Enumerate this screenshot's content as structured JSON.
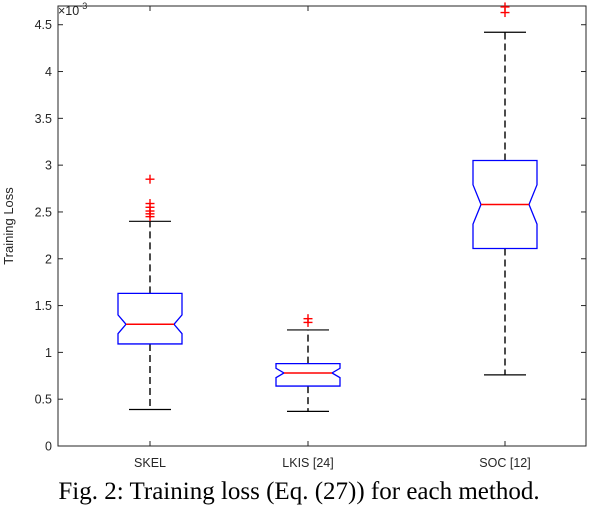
{
  "chart_data": {
    "type": "boxplot",
    "title": "",
    "xlabel": "",
    "ylabel": "Training Loss",
    "ylim": [
      0,
      0.0047
    ],
    "y_exponent_label": "×10",
    "y_exponent_power": "-3",
    "y_ticks": [
      0,
      0.5,
      1,
      1.5,
      2,
      2.5,
      3,
      3.5,
      4,
      4.5
    ],
    "y_tick_labels": [
      "0",
      "0.5",
      "1",
      "1.5",
      "2",
      "2.5",
      "3",
      "3.5",
      "4",
      "4.5"
    ],
    "categories": [
      "SKEL",
      "LKIS [24]",
      "SOC [12]"
    ],
    "boxes": [
      {
        "category": "SKEL",
        "whisker_low": 0.39,
        "q1": 1.09,
        "median": 1.3,
        "q3": 1.63,
        "whisker_high": 2.4,
        "notch_low": 1.2,
        "notch_high": 1.4,
        "outliers": [
          2.45,
          2.48,
          2.51,
          2.55,
          2.59,
          2.85
        ]
      },
      {
        "category": "LKIS [24]",
        "whisker_low": 0.37,
        "q1": 0.64,
        "median": 0.78,
        "q3": 0.88,
        "whisker_high": 1.24,
        "notch_low": 0.73,
        "notch_high": 0.83,
        "outliers": [
          1.32,
          1.36
        ]
      },
      {
        "category": "SOC [12]",
        "whisker_low": 0.76,
        "q1": 2.11,
        "median": 2.58,
        "q3": 3.05,
        "whisker_high": 4.42,
        "notch_low": 2.37,
        "notch_high": 2.79,
        "outliers": [
          4.63,
          4.69
        ]
      }
    ],
    "colors": {
      "box": "#0000ff",
      "median": "#ff0000",
      "whisker": "#000000",
      "outlier": "#ff0000",
      "axis": "#262626"
    },
    "grid": false,
    "legend": "none"
  },
  "caption": "Fig. 2: Training loss (Eq. (27)) for each method."
}
